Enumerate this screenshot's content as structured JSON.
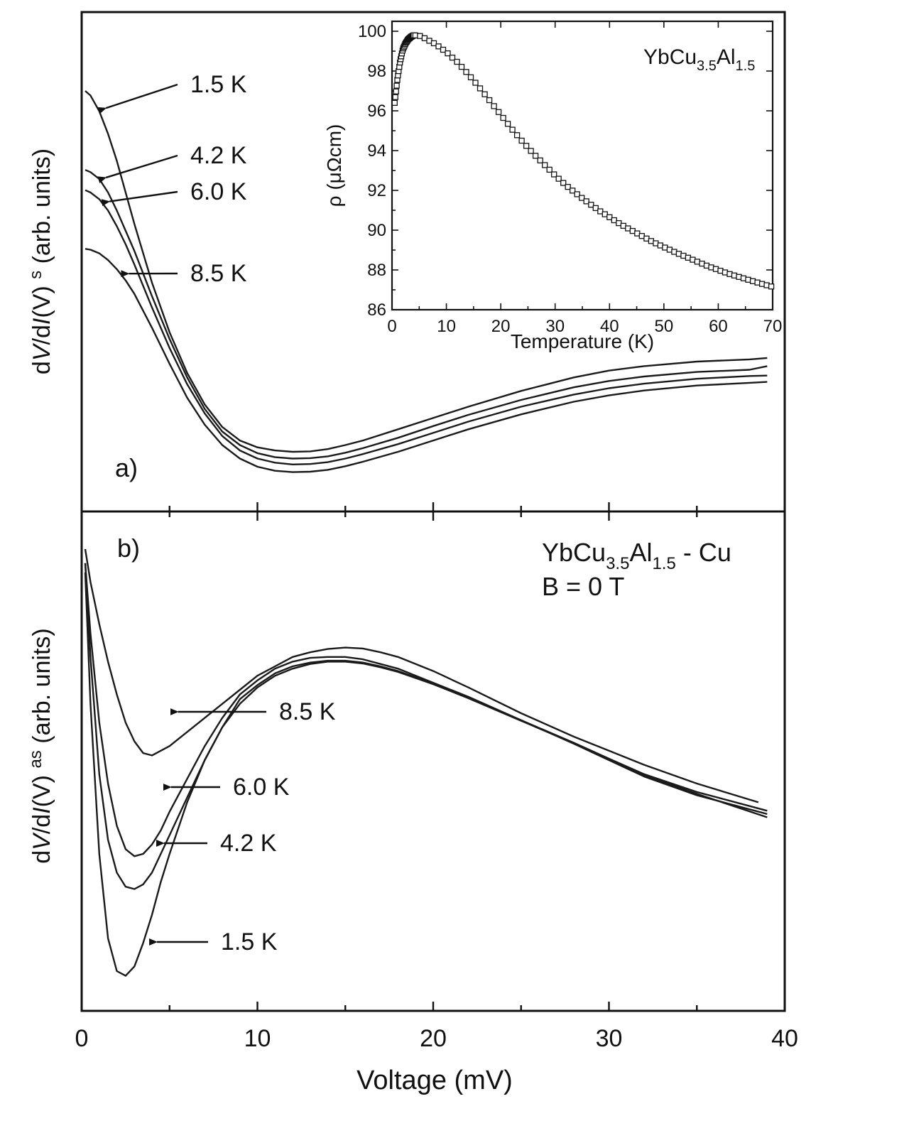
{
  "chart_data": [
    {
      "id": "panel-a",
      "type": "line",
      "panel_label": "a)",
      "xlabel": "Voltage (mV)",
      "ylabel": "dV/dI(V) s (arb. units)",
      "ylabel_parts": [
        "d",
        "V",
        "/d",
        "I",
        "(V) ",
        "s",
        "  (arb. units)"
      ],
      "xlim": [
        0,
        40
      ],
      "ylim": [
        0,
        1
      ],
      "x_ticks": [
        5,
        10,
        15,
        20,
        25,
        30,
        35
      ],
      "y_ticks_labeled": false,
      "series": [
        {
          "name": "1.5 K",
          "x": [
            0.2,
            0.5,
            1,
            1.5,
            2,
            2.5,
            3,
            4,
            5,
            6,
            7,
            8,
            9,
            10,
            11,
            12,
            13,
            14,
            15,
            16,
            18,
            20,
            22,
            25,
            28,
            30,
            32,
            35,
            38,
            39
          ],
          "y": [
            0.885,
            0.875,
            0.84,
            0.79,
            0.73,
            0.66,
            0.59,
            0.46,
            0.35,
            0.26,
            0.19,
            0.14,
            0.11,
            0.095,
            0.088,
            0.085,
            0.086,
            0.091,
            0.1,
            0.11,
            0.135,
            0.16,
            0.185,
            0.22,
            0.25,
            0.265,
            0.275,
            0.285,
            0.29,
            0.293
          ]
        },
        {
          "name": "4.2 K",
          "x": [
            0.2,
            0.5,
            1,
            1.5,
            2,
            2.5,
            3,
            4,
            5,
            6,
            7,
            8,
            9,
            10,
            11,
            12,
            13,
            14,
            15,
            16,
            18,
            20,
            22,
            25,
            28,
            30,
            32,
            35,
            38,
            39
          ],
          "y": [
            0.71,
            0.705,
            0.69,
            0.66,
            0.62,
            0.575,
            0.53,
            0.43,
            0.335,
            0.25,
            0.18,
            0.13,
            0.1,
            0.082,
            0.073,
            0.07,
            0.071,
            0.075,
            0.083,
            0.093,
            0.116,
            0.142,
            0.167,
            0.2,
            0.228,
            0.242,
            0.252,
            0.262,
            0.267,
            0.275
          ]
        },
        {
          "name": "6.0 K",
          "x": [
            0.2,
            0.5,
            1,
            1.5,
            2,
            2.5,
            3,
            4,
            5,
            6,
            7,
            8,
            9,
            10,
            11,
            12,
            13,
            14,
            15,
            16,
            18,
            20,
            22,
            25,
            28,
            30,
            32,
            35,
            38,
            39
          ],
          "y": [
            0.665,
            0.66,
            0.645,
            0.62,
            0.585,
            0.545,
            0.5,
            0.405,
            0.315,
            0.235,
            0.17,
            0.12,
            0.088,
            0.07,
            0.061,
            0.057,
            0.058,
            0.062,
            0.07,
            0.08,
            0.102,
            0.127,
            0.152,
            0.185,
            0.212,
            0.226,
            0.236,
            0.247,
            0.253,
            0.254
          ]
        },
        {
          "name": "8.5 K",
          "x": [
            0.2,
            0.5,
            1,
            1.5,
            2,
            2.5,
            3,
            4,
            5,
            6,
            7,
            8,
            9,
            10,
            11,
            12,
            13,
            14,
            15,
            16,
            18,
            20,
            22,
            25,
            28,
            30,
            32,
            35,
            38,
            39
          ],
          "y": [
            0.535,
            0.533,
            0.525,
            0.51,
            0.49,
            0.465,
            0.435,
            0.36,
            0.28,
            0.205,
            0.145,
            0.1,
            0.07,
            0.052,
            0.043,
            0.04,
            0.041,
            0.045,
            0.053,
            0.063,
            0.085,
            0.11,
            0.135,
            0.168,
            0.196,
            0.21,
            0.221,
            0.232,
            0.238,
            0.24
          ]
        }
      ],
      "annotations": [
        {
          "text": "1.5 K",
          "series": "1.5 K"
        },
        {
          "text": "4.2 K",
          "series": "4.2 K"
        },
        {
          "text": "6.0 K",
          "series": "6.0 K"
        },
        {
          "text": "8.5 K",
          "series": "8.5 K"
        }
      ]
    },
    {
      "id": "inset",
      "type": "scatter",
      "marker": "open-square",
      "xlabel": "Temperature (K)",
      "ylabel": "ρ (μΩcm)",
      "legend_label": {
        "base": "YbCu",
        "sub1": "3.5",
        "mid": "Al",
        "sub2": "1.5"
      },
      "xlim": [
        0,
        70
      ],
      "ylim": [
        86,
        100.5
      ],
      "x_ticks": [
        0,
        10,
        20,
        30,
        40,
        50,
        60,
        70
      ],
      "y_ticks": [
        86,
        88,
        90,
        92,
        94,
        96,
        98,
        100
      ],
      "curve": {
        "x": [
          0.5,
          1,
          1.5,
          2,
          2.5,
          3,
          3.5,
          4,
          5,
          6,
          7,
          8,
          10,
          12,
          14,
          16,
          18,
          20,
          22,
          24,
          26,
          28,
          30,
          32,
          35,
          38,
          40,
          42,
          45,
          48,
          50,
          52,
          55,
          58,
          60,
          62,
          65,
          68,
          70
        ],
        "y": [
          96.4,
          97.6,
          98.5,
          99.1,
          99.4,
          99.6,
          99.72,
          99.8,
          99.78,
          99.65,
          99.5,
          99.35,
          98.95,
          98.45,
          97.85,
          97.2,
          96.5,
          95.8,
          95.1,
          94.45,
          93.85,
          93.3,
          92.75,
          92.25,
          91.6,
          91.0,
          90.65,
          90.3,
          89.85,
          89.4,
          89.15,
          88.9,
          88.55,
          88.2,
          88.0,
          87.8,
          87.55,
          87.3,
          87.15
        ]
      }
    },
    {
      "id": "panel-b",
      "type": "line",
      "panel_label": "b)",
      "xlabel": "Voltage (mV)",
      "ylabel": "dV/dI(V) as (arb. units)",
      "ylabel_parts": [
        "d",
        "V",
        "/d",
        "I",
        "(V) ",
        "as",
        "  (arb. units)"
      ],
      "legend_label": {
        "base": "YbCu",
        "sub1": "3.5",
        "mid": "Al",
        "sub2": "1.5",
        "tail": " - Cu",
        "line2": "B = 0 T"
      },
      "xlim": [
        0,
        40
      ],
      "ylim": [
        0,
        1
      ],
      "x_ticks": [
        0,
        10,
        20,
        30,
        40
      ],
      "x_tick_labels": [
        "0",
        "10",
        "20",
        "30",
        "40"
      ],
      "x_minor_ticks": [
        5,
        15,
        25,
        35
      ],
      "y_ticks_labeled": false,
      "series": [
        {
          "name": "8.5 K",
          "x": [
            0.2,
            0.5,
            1,
            1.5,
            2,
            2.5,
            3,
            3.5,
            4,
            4.5,
            5,
            6,
            7,
            8,
            9,
            10,
            11,
            12,
            13,
            14,
            15,
            16,
            17,
            18,
            20,
            22,
            25,
            28,
            30,
            32,
            35,
            38.5
          ],
          "y": [
            0.95,
            0.88,
            0.79,
            0.71,
            0.64,
            0.58,
            0.54,
            0.515,
            0.51,
            0.52,
            0.53,
            0.56,
            0.59,
            0.62,
            0.65,
            0.68,
            0.7,
            0.72,
            0.73,
            0.737,
            0.74,
            0.738,
            0.73,
            0.72,
            0.69,
            0.655,
            0.6,
            0.55,
            0.52,
            0.49,
            0.45,
            0.41
          ]
        },
        {
          "name": "6.0 K",
          "x": [
            0.2,
            0.5,
            1,
            1.5,
            2,
            2.5,
            3,
            3.5,
            4,
            4.5,
            5,
            6,
            7,
            8,
            9,
            10,
            11,
            12,
            13,
            14,
            15,
            16,
            17,
            18,
            20,
            22,
            25,
            28,
            30,
            32,
            35,
            39
          ],
          "y": [
            0.92,
            0.77,
            0.58,
            0.45,
            0.36,
            0.31,
            0.295,
            0.3,
            0.32,
            0.35,
            0.39,
            0.46,
            0.53,
            0.59,
            0.64,
            0.67,
            0.695,
            0.71,
            0.718,
            0.72,
            0.72,
            0.715,
            0.705,
            0.695,
            0.665,
            0.635,
            0.585,
            0.535,
            0.5,
            0.465,
            0.425,
            0.385
          ]
        },
        {
          "name": "4.2 K",
          "x": [
            0.2,
            0.5,
            1,
            1.5,
            2,
            2.5,
            3,
            3.5,
            4,
            4.5,
            5,
            6,
            7,
            8,
            9,
            10,
            11,
            12,
            13,
            14,
            15,
            16,
            17,
            18,
            20,
            22,
            25,
            28,
            30,
            32,
            35,
            39
          ],
          "y": [
            0.92,
            0.72,
            0.47,
            0.33,
            0.26,
            0.23,
            0.225,
            0.235,
            0.26,
            0.3,
            0.34,
            0.42,
            0.5,
            0.57,
            0.63,
            0.66,
            0.685,
            0.7,
            0.708,
            0.712,
            0.712,
            0.708,
            0.7,
            0.69,
            0.663,
            0.633,
            0.585,
            0.537,
            0.503,
            0.47,
            0.432,
            0.392
          ]
        },
        {
          "name": "1.5 K",
          "x": [
            0.2,
            0.5,
            1,
            1.5,
            2,
            2.5,
            3,
            3.5,
            4,
            4.5,
            5,
            6,
            7,
            8,
            9,
            10,
            11,
            12,
            13,
            14,
            15,
            16,
            17,
            18,
            20,
            22,
            25,
            28,
            30,
            32,
            35,
            39
          ],
          "y": [
            0.9,
            0.62,
            0.3,
            0.12,
            0.05,
            0.04,
            0.06,
            0.11,
            0.17,
            0.24,
            0.3,
            0.41,
            0.5,
            0.57,
            0.62,
            0.655,
            0.68,
            0.695,
            0.705,
            0.71,
            0.71,
            0.706,
            0.698,
            0.688,
            0.662,
            0.632,
            0.584,
            0.536,
            0.502,
            0.468,
            0.428,
            0.378
          ]
        }
      ],
      "annotations": [
        {
          "text": "8.5 K",
          "series": "8.5 K"
        },
        {
          "text": "6.0 K",
          "series": "6.0 K"
        },
        {
          "text": "4.2 K",
          "series": "4.2 K"
        },
        {
          "text": "1.5 K",
          "series": "1.5 K"
        }
      ]
    }
  ]
}
